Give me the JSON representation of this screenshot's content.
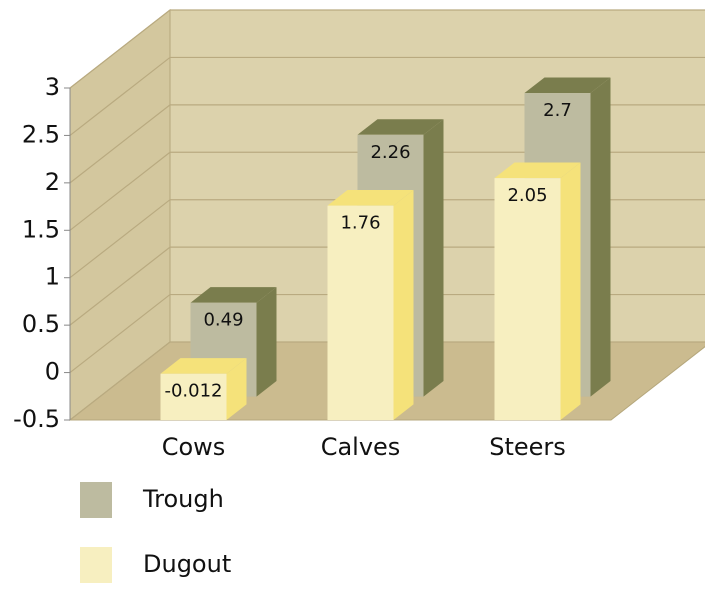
{
  "chart_data": {
    "type": "bar3d",
    "categories": [
      "Cows",
      "Calves",
      "Steers"
    ],
    "series": [
      {
        "name": "Trough",
        "color": "#bdbba0",
        "side_color": "#7a7d4d",
        "values": [
          0.49,
          2.26,
          2.7
        ]
      },
      {
        "name": "Dugout",
        "color": "#f7efc0",
        "side_color": "#f5e27a",
        "values": [
          -0.012,
          1.76,
          2.05
        ]
      }
    ],
    "ylim": [
      -0.5,
      3
    ],
    "yticks": [
      -0.5,
      0,
      0.5,
      1,
      1.5,
      2,
      2.5,
      3
    ],
    "grid": true
  }
}
